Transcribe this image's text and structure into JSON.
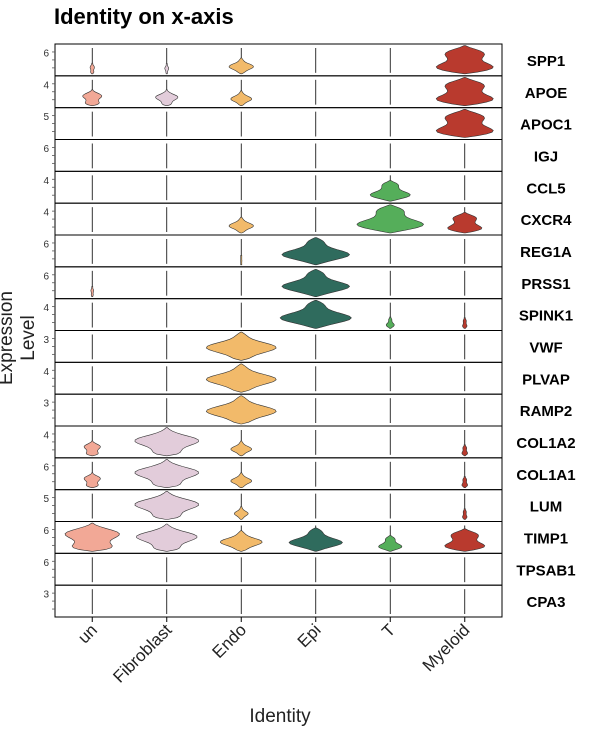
{
  "chart_data": {
    "type": "violin",
    "title": "Identity on x-axis",
    "xlabel": "Identity",
    "ylabel": "Expression Level",
    "identities": [
      "un",
      "Fibroblast",
      "Endo",
      "Epi",
      "T",
      "Myeloid"
    ],
    "colors": {
      "un": "#F2A896",
      "Fibroblast": "#E2CCDA",
      "Endo": "#F2BA6A",
      "Epi": "#2F6B5D",
      "T": "#55AE5A",
      "Myeloid": "#B93A2E"
    },
    "genes": [
      {
        "name": "SPP1",
        "ytick": "6",
        "violins": [
          0.08,
          0.06,
          0.35,
          0,
          0,
          1.0
        ]
      },
      {
        "name": "APOE",
        "ytick": "4",
        "violins": [
          0.35,
          0.35,
          0.3,
          0,
          0,
          1.0
        ]
      },
      {
        "name": "APOC1",
        "ytick": "5",
        "violins": [
          0,
          0,
          0,
          0,
          0,
          1.0
        ]
      },
      {
        "name": "IGJ",
        "ytick": "6",
        "violins": [
          0,
          0,
          0,
          0,
          0,
          0
        ]
      },
      {
        "name": "CCL5",
        "ytick": "4",
        "violins": [
          0,
          0,
          0,
          0,
          0.6,
          0
        ]
      },
      {
        "name": "CXCR4",
        "ytick": "4",
        "violins": [
          0,
          0,
          0.35,
          0,
          1.0,
          0.6
        ]
      },
      {
        "name": "REG1A",
        "ytick": "6",
        "violins": [
          0,
          0,
          0.02,
          0.95,
          0,
          0
        ]
      },
      {
        "name": "PRSS1",
        "ytick": "6",
        "violins": [
          0.05,
          0,
          0,
          0.95,
          0,
          0
        ]
      },
      {
        "name": "SPINK1",
        "ytick": "4",
        "violins": [
          0,
          0,
          0,
          1.0,
          0.12,
          0.08
        ]
      },
      {
        "name": "VWF",
        "ytick": "3",
        "violins": [
          0,
          0,
          1.0,
          0,
          0,
          0
        ]
      },
      {
        "name": "PLVAP",
        "ytick": "4",
        "violins": [
          0,
          0,
          1.0,
          0,
          0,
          0
        ]
      },
      {
        "name": "RAMP2",
        "ytick": "3",
        "violins": [
          0,
          0,
          1.0,
          0,
          0,
          0
        ]
      },
      {
        "name": "COL1A2",
        "ytick": "4",
        "violins": [
          0.3,
          1.0,
          0.3,
          0,
          0,
          0.1
        ]
      },
      {
        "name": "COL1A1",
        "ytick": "6",
        "violins": [
          0.3,
          1.0,
          0.3,
          0,
          0,
          0.1
        ]
      },
      {
        "name": "LUM",
        "ytick": "5",
        "violins": [
          0,
          1.0,
          0.2,
          0,
          0,
          0.08
        ]
      },
      {
        "name": "TIMP1",
        "ytick": "6",
        "violins": [
          1.0,
          0.95,
          0.6,
          0.75,
          0.35,
          0.7
        ]
      },
      {
        "name": "TPSAB1",
        "ytick": "6",
        "violins": [
          0,
          0,
          0,
          0,
          0,
          0
        ]
      },
      {
        "name": "CPA3",
        "ytick": "3",
        "violins": [
          0,
          0,
          0,
          0,
          0,
          0
        ]
      }
    ]
  }
}
